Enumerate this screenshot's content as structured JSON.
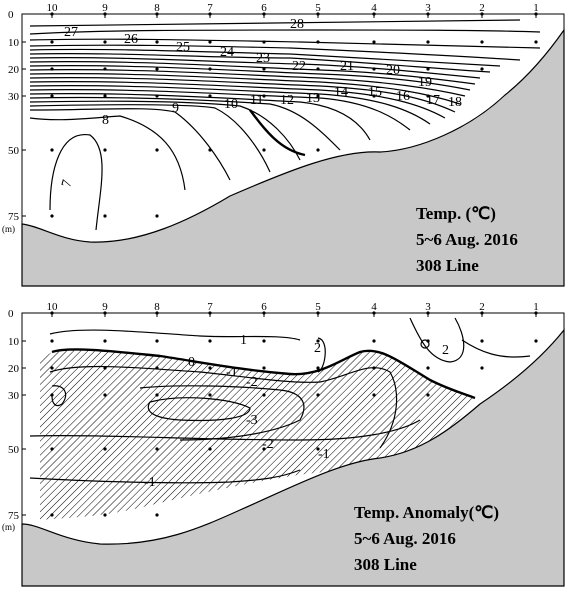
{
  "chart_data": [
    {
      "type": "contour",
      "panel": "top",
      "station_ticks": [
        "10",
        "9",
        "8",
        "7",
        "6",
        "5",
        "4",
        "3",
        "2",
        "1"
      ],
      "depth_ticks": [
        "0",
        "10",
        "20",
        "30",
        "50",
        "75"
      ],
      "depth_unit": "(m)",
      "ylim": [
        0,
        75
      ],
      "annotation": [
        "Temp. (℃)",
        "5~6 Aug. 2016",
        "308 Line"
      ],
      "contour_labels": [
        "28",
        "27",
        "26",
        "25",
        "24",
        "23",
        "22",
        "21",
        "20",
        "19",
        "18",
        "17",
        "16",
        "15",
        "14",
        "13",
        "12",
        "11",
        "10",
        "9",
        "8",
        "7"
      ],
      "sample_points": [
        {
          "station": "10",
          "depths": [
            0,
            10,
            20,
            30,
            50,
            75
          ]
        },
        {
          "station": "9",
          "depths": [
            0,
            10,
            20,
            30,
            50,
            75
          ]
        },
        {
          "station": "8",
          "depths": [
            0,
            10,
            20,
            30,
            50,
            75
          ]
        },
        {
          "station": "7",
          "depths": [
            0,
            10,
            20,
            30,
            50
          ]
        },
        {
          "station": "6",
          "depths": [
            0,
            10,
            20,
            30,
            50
          ]
        },
        {
          "station": "5",
          "depths": [
            0,
            10,
            20,
            30,
            50
          ]
        },
        {
          "station": "4",
          "depths": [
            0,
            10,
            20,
            30
          ]
        },
        {
          "station": "3",
          "depths": [
            0,
            10,
            20,
            30
          ]
        },
        {
          "station": "2",
          "depths": [
            0,
            10,
            20
          ]
        },
        {
          "station": "1",
          "depths": [
            0,
            10
          ]
        }
      ],
      "colors": {
        "seabed": "#c8c8c8",
        "line": "#000000"
      }
    },
    {
      "type": "contour",
      "panel": "bottom",
      "station_ticks": [
        "10",
        "9",
        "8",
        "7",
        "6",
        "5",
        "4",
        "3",
        "2",
        "1"
      ],
      "depth_ticks": [
        "0",
        "10",
        "20",
        "30",
        "50",
        "75"
      ],
      "depth_unit": "(m)",
      "ylim": [
        0,
        75
      ],
      "annotation": [
        "Temp. Anomaly(℃)",
        "5~6 Aug. 2016",
        "308 Line"
      ],
      "contour_labels": [
        "1",
        "2",
        "0",
        "-1",
        "-2",
        "-3",
        "-2",
        "-1",
        "2",
        "-1"
      ],
      "hatched_region": "negative anomaly",
      "colors": {
        "seabed": "#c8c8c8",
        "line": "#000000"
      }
    }
  ]
}
